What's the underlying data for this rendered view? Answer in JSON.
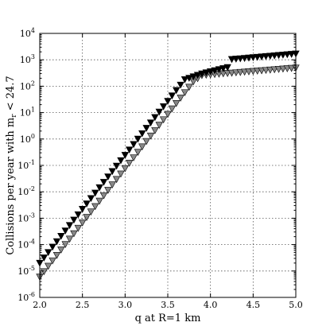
{
  "chart_data": {
    "type": "scatter",
    "xlabel": "q at R=1 km",
    "ylabel_main": "Collisions per year with m",
    "ylabel_sub": "r",
    "ylabel_tail": " < 24.7",
    "xlim": [
      2.0,
      5.0
    ],
    "ylim_exp": [
      -6,
      4
    ],
    "y_scale": "log",
    "grid": true,
    "x_ticks": [
      "2.0",
      "2.5",
      "3.0",
      "3.5",
      "4.0",
      "4.5",
      "5.0"
    ],
    "y_tick_exponents": [
      "-6",
      "-5",
      "-4",
      "-3",
      "-2",
      "-1",
      "0",
      "1",
      "2",
      "3",
      "4"
    ],
    "marker": "down-triangle",
    "series": [
      {
        "color": "#000000",
        "x_start": 2.0,
        "x_end": 5.0,
        "step": 0.05,
        "breakpoints": [
          [
            2.0,
            2e-05
          ],
          [
            3.7,
            180
          ],
          [
            3.9,
            300
          ],
          [
            4.2,
            520
          ],
          [
            4.25,
            1050
          ],
          [
            5.0,
            1700
          ]
        ]
      },
      {
        "color": "#888888",
        "x_start": 2.0,
        "x_end": 5.0,
        "step": 0.05,
        "breakpoints": [
          [
            2.0,
            6e-06
          ],
          [
            3.8,
            150
          ],
          [
            3.9,
            260
          ],
          [
            5.0,
            500
          ]
        ]
      }
    ]
  }
}
